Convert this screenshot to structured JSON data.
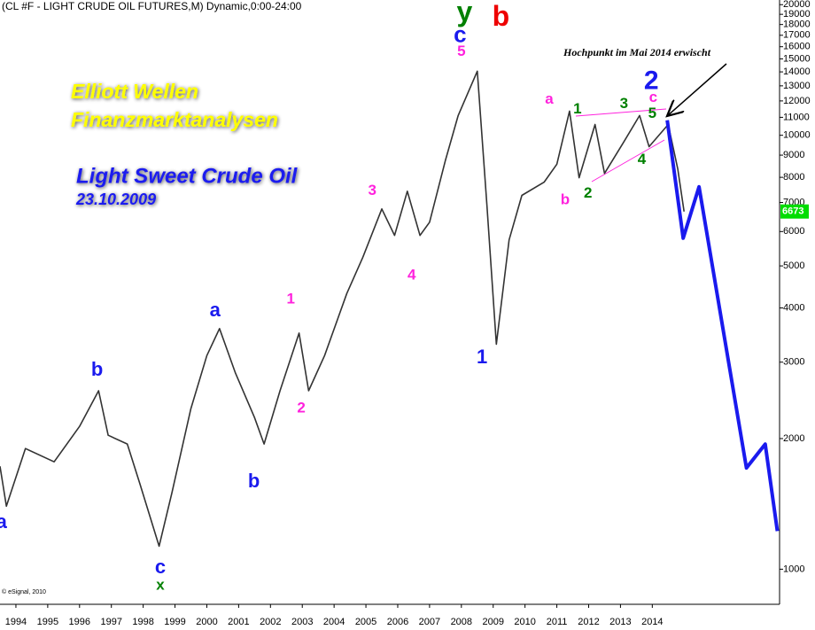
{
  "chart_data": {
    "type": "line",
    "header": "(CL #F - LIGHT CRUDE OIL FUTURES,M) Dynamic,0:00-24:00",
    "title": "Elliott Wellen",
    "subtitle": "Finanzmarktanalysen",
    "heading": "Light Sweet Crude Oil",
    "date": "23.10.2009",
    "note": "Hochpunkt im Mai 2014 erwischt",
    "credit": "© eSignal, 2010",
    "last_price": 6673,
    "last_price_color": "#00dd00",
    "log_scale": true,
    "xlim": [
      1993.5,
      2018.0
    ],
    "xticks": [
      1994,
      1995,
      1996,
      1997,
      1998,
      1999,
      2000,
      2001,
      2002,
      2003,
      2004,
      2005,
      2006,
      2007,
      2008,
      2009,
      2010,
      2011,
      2012,
      2013,
      2014
    ],
    "ylim": [
      830,
      20500
    ],
    "yticks": [
      1000,
      2000,
      3000,
      4000,
      5000,
      6000,
      7000,
      8000,
      9000,
      10000,
      11000,
      12000,
      13000,
      14000,
      15000,
      16000,
      17000,
      18000,
      19000,
      20000
    ],
    "series": [
      {
        "color": "#333333",
        "x": [
          1993.5,
          1993.7,
          1994.3,
          1995.2,
          1996.0,
          1996.6,
          1996.9,
          1997.5,
          1997.9,
          1998.5,
          1998.9,
          1999.5,
          2000.0,
          2000.4,
          2000.9,
          2001.5,
          2001.8,
          2002.3,
          2002.9,
          2003.2,
          2003.7,
          2004.4,
          2004.9,
          2005.5,
          2005.9,
          2006.3,
          2006.7,
          2007.0,
          2007.5,
          2007.9,
          2008.5,
          2008.8,
          2009.1,
          2009.5,
          2009.9,
          2010.6,
          2011.0,
          2011.4,
          2011.7,
          2012.2,
          2012.5,
          2013.1,
          2013.6,
          2013.9,
          2014.5,
          2014.8,
          2015.0
        ],
        "values": [
          1727,
          1397,
          1897,
          1768,
          2134,
          2577,
          2036,
          1943,
          1571,
          1130,
          1498,
          2345,
          3107,
          3585,
          2830,
          2236,
          1943,
          2577,
          3500,
          2577,
          3107,
          4319,
          5227,
          6765,
          5878,
          7432,
          5878,
          6305,
          8768,
          11102,
          14053,
          6924,
          3300,
          5740,
          7269,
          7798,
          8577,
          11367,
          7981,
          10588,
          8167,
          9641,
          11102,
          9414,
          10588,
          8363,
          6673
        ]
      },
      {
        "color": "#1a1aee",
        "x": [
          2014.47,
          2014.97,
          2015.47,
          2016.96,
          2017.55,
          2017.93
        ],
        "values": [
          10833,
          5791,
          7609,
          1711,
          1942,
          1224
        ]
      }
    ],
    "annotations": [
      {
        "text": "a",
        "x": 1993.55,
        "y": 1277,
        "color": "#1a1aee"
      },
      {
        "text": "b",
        "x": 1996.55,
        "y": 2872,
        "color": "#1a1aee"
      },
      {
        "text": "c",
        "x": 1998.54,
        "y": 1005,
        "color": "#1a1aee"
      },
      {
        "text": "x",
        "x": 1998.54,
        "y": 915,
        "color": "#008000"
      },
      {
        "text": "a",
        "x": 2000.26,
        "y": 3936,
        "color": "#1a1aee"
      },
      {
        "text": "b",
        "x": 2001.48,
        "y": 1586,
        "color": "#1a1aee"
      },
      {
        "text": "1",
        "x": 2002.64,
        "y": 4184,
        "color": "#ff22dd"
      },
      {
        "text": "2",
        "x": 2002.97,
        "y": 2346,
        "color": "#ff22dd"
      },
      {
        "text": "3",
        "x": 2005.2,
        "y": 7433,
        "color": "#ff22dd"
      },
      {
        "text": "4",
        "x": 2006.44,
        "y": 4753,
        "color": "#ff22dd"
      },
      {
        "text": "5",
        "x": 2008.0,
        "y": 15566,
        "color": "#ff22dd"
      },
      {
        "text": "c",
        "x": 2007.96,
        "y": 16950,
        "color": "#1a1aee"
      },
      {
        "text": "y",
        "x": 2008.1,
        "y": 19060,
        "color": "#008000"
      },
      {
        "text": "b",
        "x": 2009.24,
        "y": 18620,
        "color": "#ee0000"
      },
      {
        "text": "1",
        "x": 2008.65,
        "y": 3066,
        "color": "#1a1aee"
      },
      {
        "text": "a",
        "x": 2010.76,
        "y": 12076,
        "color": "#ff22dd"
      },
      {
        "text": "b",
        "x": 2011.26,
        "y": 7089,
        "color": "#ff22dd"
      },
      {
        "text": "1",
        "x": 2011.65,
        "y": 11460,
        "color": "#008000"
      },
      {
        "text": "2",
        "x": 2011.98,
        "y": 7329,
        "color": "#008000"
      },
      {
        "text": "3",
        "x": 2013.11,
        "y": 11793,
        "color": "#008000"
      },
      {
        "text": "4",
        "x": 2013.67,
        "y": 8768,
        "color": "#008000"
      },
      {
        "text": "5",
        "x": 2014.0,
        "y": 11200,
        "color": "#008000"
      },
      {
        "text": "c",
        "x": 2014.03,
        "y": 12187,
        "color": "#ff22dd"
      },
      {
        "text": "2",
        "x": 2013.97,
        "y": 13270,
        "color": "#1a1aee"
      }
    ]
  }
}
